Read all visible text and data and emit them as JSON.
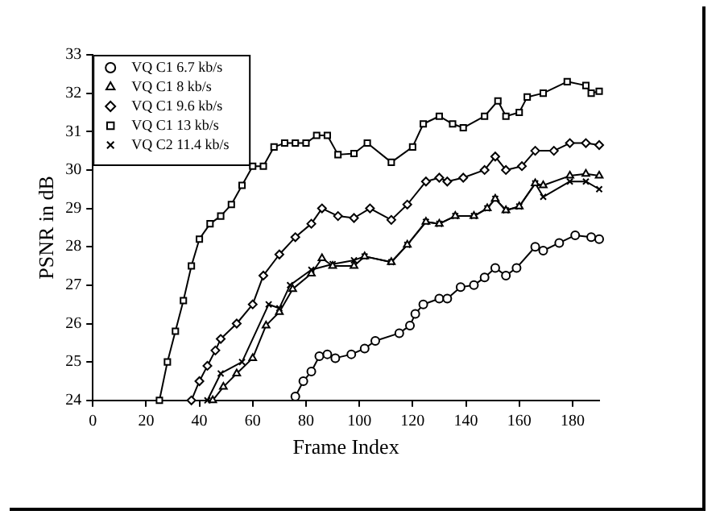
{
  "chart_data": {
    "type": "line",
    "xlabel": "Frame Index",
    "ylabel": "PSNR in dB",
    "xlim": [
      0,
      190
    ],
    "xticks": [
      0,
      20,
      40,
      60,
      80,
      100,
      120,
      140,
      160,
      180
    ],
    "ylim": [
      24,
      33
    ],
    "yticks": [
      24,
      25,
      26,
      27,
      28,
      29,
      30,
      31,
      32,
      33
    ],
    "grid": false,
    "legend": "top left",
    "line_style": "solid",
    "series": [
      {
        "name": "VQ C1 6.7 kb/s",
        "color": "#000000",
        "marker": "circle",
        "x": [
          76,
          79,
          82,
          85,
          88,
          91,
          97,
          102,
          106,
          115,
          119,
          121,
          124,
          130,
          133,
          138,
          143,
          147,
          151,
          155,
          159,
          166,
          169,
          175,
          181,
          187,
          190
        ],
        "values": [
          24.1,
          24.5,
          24.75,
          25.15,
          25.2,
          25.1,
          25.2,
          25.35,
          25.55,
          25.75,
          25.95,
          26.25,
          26.5,
          26.65,
          26.65,
          26.95,
          27.0,
          27.2,
          27.45,
          27.25,
          27.45,
          28.0,
          27.9,
          28.1,
          28.3,
          28.25,
          28.2
        ]
      },
      {
        "name": "VQ C1 8 kb/s",
        "color": "#000000",
        "marker": "triangle",
        "x": [
          45,
          49,
          54,
          60,
          65,
          70,
          75,
          82,
          86,
          90,
          98,
          102,
          112,
          118,
          125,
          130,
          136,
          143,
          148,
          151,
          155,
          160,
          166,
          169,
          179,
          185,
          190
        ],
        "values": [
          24.0,
          24.35,
          24.7,
          25.1,
          25.95,
          26.3,
          26.9,
          27.3,
          27.7,
          27.5,
          27.5,
          27.75,
          27.6,
          28.05,
          28.65,
          28.6,
          28.8,
          28.8,
          29.0,
          29.25,
          28.95,
          29.05,
          29.65,
          29.6,
          29.85,
          29.9,
          29.85
        ]
      },
      {
        "name": "VQ C1 9.6 kb/s",
        "color": "#000000",
        "marker": "diamond",
        "x": [
          37,
          40,
          43,
          46,
          48,
          54,
          60,
          64,
          70,
          76,
          82,
          86,
          92,
          98,
          104,
          112,
          118,
          125,
          130,
          133,
          139,
          147,
          151,
          155,
          161,
          166,
          173,
          179,
          185,
          190
        ],
        "values": [
          24.0,
          24.5,
          24.9,
          25.3,
          25.6,
          26.0,
          26.5,
          27.25,
          27.8,
          28.25,
          28.6,
          29.0,
          28.8,
          28.75,
          29.0,
          28.7,
          29.1,
          29.7,
          29.8,
          29.7,
          29.8,
          30.0,
          30.35,
          30.0,
          30.1,
          30.5,
          30.5,
          30.7,
          30.7,
          30.65
        ]
      },
      {
        "name": "VQ C1 13 kb/s",
        "color": "#000000",
        "marker": "square",
        "x": [
          25,
          28,
          31,
          34,
          37,
          40,
          44,
          48,
          52,
          56,
          60,
          64,
          68,
          72,
          76,
          80,
          84,
          88,
          92,
          98,
          103,
          112,
          120,
          124,
          130,
          135,
          139,
          147,
          152,
          155,
          160,
          163,
          169,
          178,
          185,
          187,
          190
        ],
        "values": [
          24.0,
          25.0,
          25.8,
          26.6,
          27.5,
          28.2,
          28.6,
          28.8,
          29.1,
          29.6,
          30.1,
          30.1,
          30.6,
          30.7,
          30.7,
          30.7,
          30.9,
          30.9,
          30.4,
          30.43,
          30.7,
          30.2,
          30.6,
          31.2,
          31.4,
          31.2,
          31.1,
          31.4,
          31.8,
          31.4,
          31.5,
          31.9,
          32.0,
          32.3,
          32.2,
          32.0,
          32.05
        ]
      },
      {
        "name": "VQ C2 11.4 kb/s",
        "color": "#000000",
        "marker": "cross",
        "x": [
          43,
          48,
          56,
          66,
          70,
          74,
          82,
          90,
          98,
          102,
          112,
          118,
          125,
          130,
          136,
          143,
          148,
          151,
          155,
          160,
          166,
          169,
          179,
          185,
          190
        ],
        "values": [
          24.0,
          24.7,
          25.0,
          26.5,
          26.4,
          27.0,
          27.4,
          27.55,
          27.65,
          27.75,
          27.6,
          28.05,
          28.65,
          28.6,
          28.8,
          28.8,
          29.0,
          29.25,
          28.95,
          29.05,
          29.65,
          29.3,
          29.7,
          29.7,
          29.5
        ]
      }
    ]
  }
}
